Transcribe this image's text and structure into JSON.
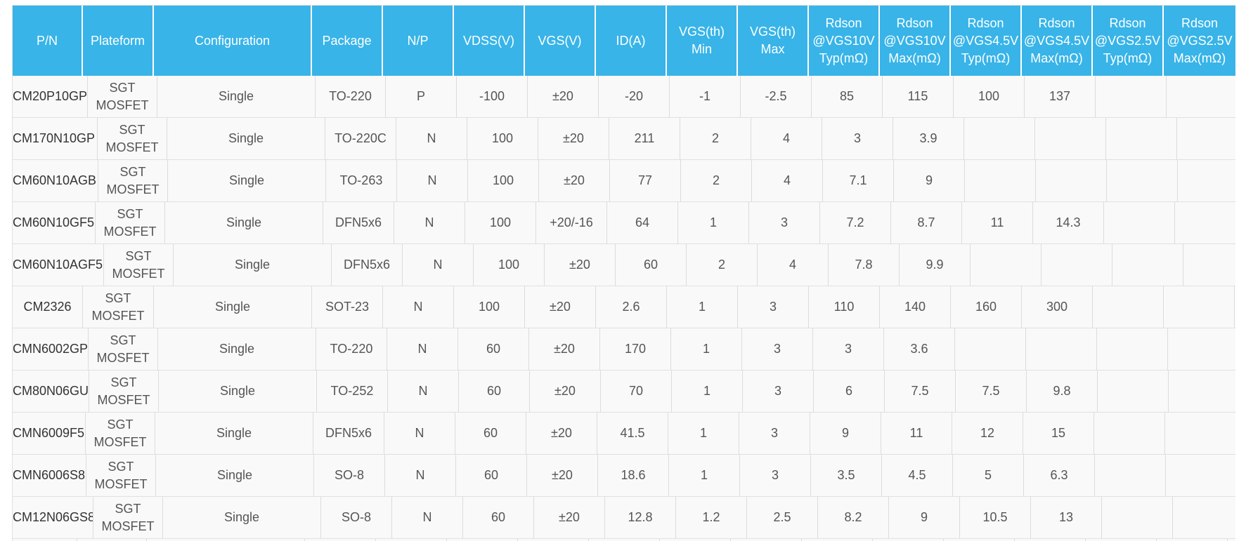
{
  "table": {
    "headers": [
      "P/N",
      "Plateform",
      "Configuration",
      "Package",
      "N/P",
      "VDSS(V)",
      "VGS(V)",
      "ID(A)",
      "VGS(th) Min",
      "VGS(th)\nMax",
      "Rdson\n@VGS10V\nTyp(mΩ)",
      "Rdson\n@VGS10V\nMax(mΩ)",
      "Rdson\n@VGS4.5V\nTyp(mΩ)",
      "Rdson\n@VGS4.5V\nMax(mΩ)",
      "Rdson\n@VGS2.5V\nTyp(mΩ)",
      "Rdson\n@VGS2.5V\nMax(mΩ)"
    ],
    "rows": [
      [
        "CM20P10GP",
        "SGT\nMOSFET",
        "Single",
        "TO-220",
        "P",
        "-100",
        "±20",
        "-20",
        "-1",
        "-2.5",
        "85",
        "115",
        "100",
        "137",
        "",
        ""
      ],
      [
        "CM170N10GP",
        "SGT\nMOSFET",
        "Single",
        "TO-220C",
        "N",
        "100",
        "±20",
        "211",
        "2",
        "4",
        "3",
        "3.9",
        "",
        "",
        "",
        ""
      ],
      [
        "CM60N10AGB",
        "SGT\nMOSFET",
        "Single",
        "TO-263",
        "N",
        "100",
        "±20",
        "77",
        "2",
        "4",
        "7.1",
        "9",
        "",
        "",
        "",
        ""
      ],
      [
        "CM60N10GF5",
        "SGT\nMOSFET",
        "Single",
        "DFN5x6",
        "N",
        "100",
        "+20/-16",
        "64",
        "1",
        "3",
        "7.2",
        "8.7",
        "11",
        "14.3",
        "",
        ""
      ],
      [
        "CM60N10AGF5",
        "SGT\nMOSFET",
        "Single",
        "DFN5x6",
        "N",
        "100",
        "±20",
        "60",
        "2",
        "4",
        "7.8",
        "9.9",
        "",
        "",
        "",
        ""
      ],
      [
        "CM2326",
        "SGT\nMOSFET",
        "Single",
        "SOT-23",
        "N",
        "100",
        "±20",
        "2.6",
        "1",
        "3",
        "110",
        "140",
        "160",
        "300",
        "",
        ""
      ],
      [
        "CMN6002GP",
        "SGT\nMOSFET",
        "Single",
        "TO-220",
        "N",
        "60",
        "±20",
        "170",
        "1",
        "3",
        "3",
        "3.6",
        "",
        "",
        "",
        ""
      ],
      [
        "CM80N06GU",
        "SGT\nMOSFET",
        "Single",
        "TO-252",
        "N",
        "60",
        "±20",
        "70",
        "1",
        "3",
        "6",
        "7.5",
        "7.5",
        "9.8",
        "",
        ""
      ],
      [
        "CMN6009F5",
        "SGT\nMOSFET",
        "Single",
        "DFN5x6",
        "N",
        "60",
        "±20",
        "41.5",
        "1",
        "3",
        "9",
        "11",
        "12",
        "15",
        "",
        ""
      ],
      [
        "CMN6006S8",
        "SGT\nMOSFET",
        "Single",
        "SO-8",
        "N",
        "60",
        "±20",
        "18.6",
        "1",
        "3",
        "3.5",
        "4.5",
        "5",
        "6.3",
        "",
        ""
      ],
      [
        "CM12N06GS8",
        "SGT\nMOSFET",
        "Single",
        "SO-8",
        "N",
        "60",
        "±20",
        "12.8",
        "1.2",
        "2.5",
        "8.2",
        "9",
        "10.5",
        "13",
        "",
        ""
      ]
    ]
  },
  "colors": {
    "header_bg": "#38b4e8",
    "header_text": "#ffffff",
    "row_bg": "#f9f9f9",
    "cell_text": "#555555",
    "grid": "#dcdcdc"
  }
}
